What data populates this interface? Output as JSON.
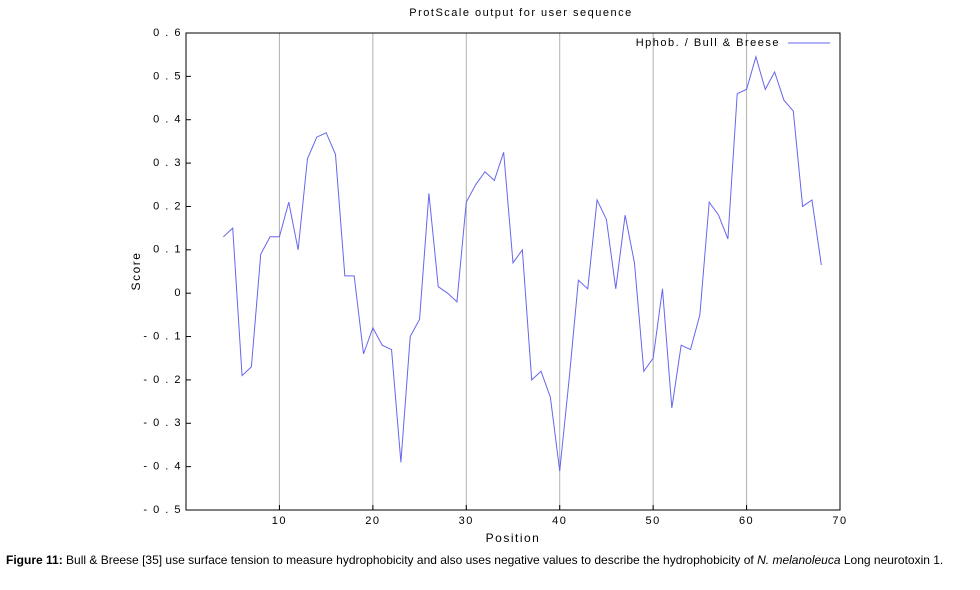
{
  "chart_data": {
    "type": "line",
    "title": "ProtScale output for user sequence",
    "xlabel": "Position",
    "ylabel": "Score",
    "x": [
      4,
      5,
      6,
      7,
      8,
      9,
      10,
      11,
      12,
      13,
      14,
      15,
      16,
      17,
      18,
      19,
      20,
      21,
      22,
      23,
      24,
      25,
      26,
      27,
      28,
      29,
      30,
      31,
      32,
      33,
      34,
      35,
      36,
      37,
      38,
      39,
      40,
      41,
      42,
      43,
      44,
      45,
      46,
      47,
      48,
      49,
      50,
      51,
      52,
      53,
      54,
      55,
      56,
      57,
      58,
      59,
      60,
      61,
      62,
      63,
      64,
      65,
      66,
      67,
      68
    ],
    "series": [
      {
        "name": "Hphob. / Bull & Breese",
        "color": "#6666ee",
        "values": [
          0.13,
          0.15,
          -0.19,
          -0.17,
          0.09,
          0.13,
          0.13,
          0.21,
          0.1,
          0.31,
          0.36,
          0.37,
          0.32,
          0.04,
          0.04,
          -0.14,
          -0.08,
          -0.12,
          -0.13,
          -0.39,
          -0.1,
          -0.06,
          0.23,
          0.015,
          0.0,
          -0.02,
          0.21,
          0.25,
          0.28,
          0.26,
          0.325,
          0.07,
          0.1,
          -0.2,
          -0.18,
          -0.24,
          -0.41,
          -0.2,
          0.03,
          0.01,
          0.215,
          0.17,
          0.01,
          0.18,
          0.07,
          -0.18,
          -0.15,
          0.01,
          -0.265,
          -0.12,
          -0.13,
          -0.05,
          0.21,
          0.18,
          0.125,
          0.46,
          0.47,
          0.545,
          0.47,
          0.51,
          0.445,
          0.42,
          0.2,
          0.215,
          0.065
        ]
      }
    ],
    "xlim": [
      0,
      70
    ],
    "xticks": [
      10,
      20,
      30,
      40,
      50,
      60,
      70
    ],
    "ylim": [
      -0.5,
      0.6
    ],
    "yticks": [
      {
        "value": 0.6,
        "label": "0 . 6"
      },
      {
        "value": 0.5,
        "label": "0 . 5"
      },
      {
        "value": 0.4,
        "label": "0 . 4"
      },
      {
        "value": 0.3,
        "label": "0 . 3"
      },
      {
        "value": 0.2,
        "label": "0 . 2"
      },
      {
        "value": 0.1,
        "label": "0 . 1"
      },
      0,
      {
        "value": -0.1,
        "label": "- 0 . 1"
      },
      {
        "value": -0.2,
        "label": "- 0 . 2"
      },
      {
        "value": -0.3,
        "label": "- 0 . 3"
      },
      {
        "value": -0.4,
        "label": "- 0 . 4"
      },
      {
        "value": -0.5,
        "label": "- 0 . 5"
      }
    ],
    "xgrid": true,
    "ygrid": false,
    "legend": "top-right"
  },
  "caption": {
    "label": "Figure 11:",
    "text_before": "Bull & Breese [35] use surface tension to measure hydrophobicity and also uses negative values to describe the hydrophobicity of",
    "italic": "N. melanoleuca",
    "text_after": "Long neurotoxin 1."
  }
}
